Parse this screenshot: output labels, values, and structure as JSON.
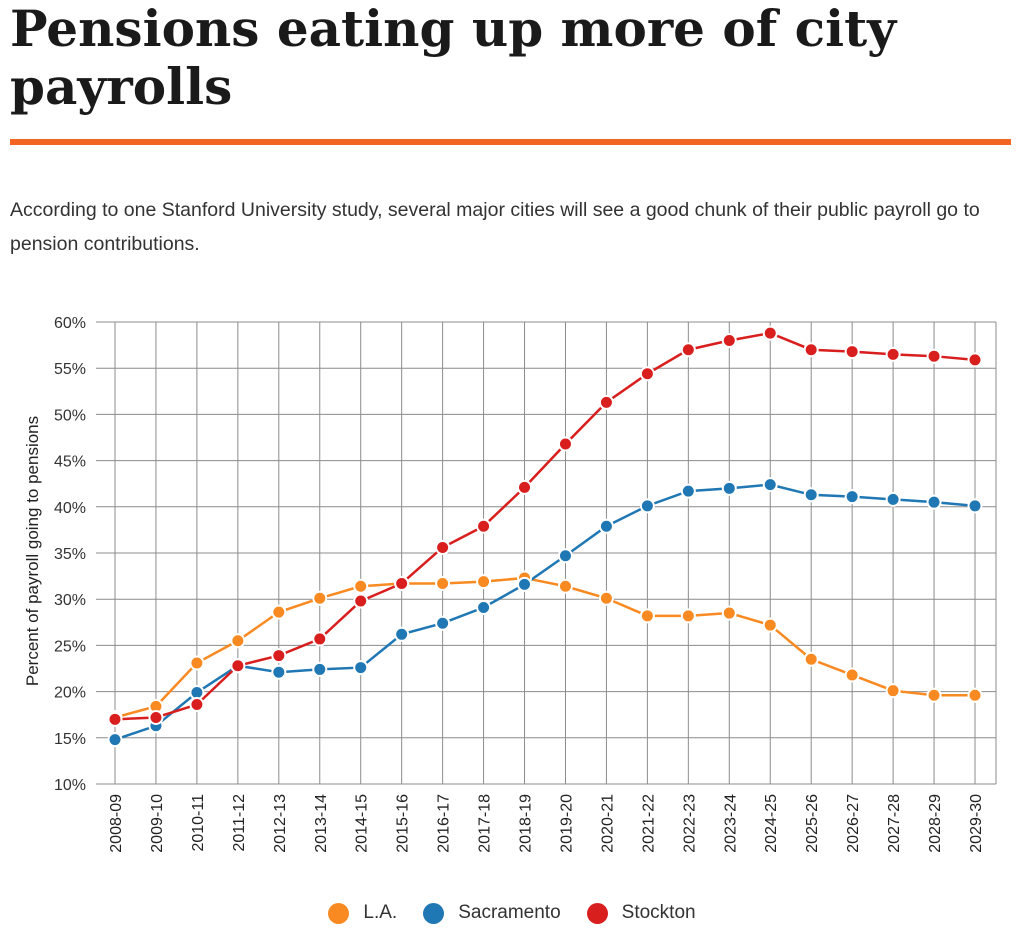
{
  "title": "Pensions eating up more of city payrolls",
  "subtitle": "According to one Stanford University study, several major cities will see a good chunk of their public payroll go to pension contributions.",
  "colors": {
    "rule": "#f26522",
    "grid": "#8c8c8c",
    "la": "#f98a21",
    "sacramento": "#1f77b4",
    "stockton": "#d91e1e"
  },
  "chart_data": {
    "type": "line",
    "title": "",
    "xlabel": "",
    "ylabel": "Percent of payroll going to pensions",
    "ylim": [
      10,
      60
    ],
    "yticks": [
      "10%",
      "15%",
      "20%",
      "25%",
      "30%",
      "35%",
      "40%",
      "45%",
      "50%",
      "55%",
      "60%"
    ],
    "grid": true,
    "legend_position": "bottom",
    "categories": [
      "2008-09",
      "2009-10",
      "2010-11",
      "2011-12",
      "2012-13",
      "2013-14",
      "2014-15",
      "2015-16",
      "2016-17",
      "2017-18",
      "2018-19",
      "2019-20",
      "2020-21",
      "2021-22",
      "2022-23",
      "2023-24",
      "2024-25",
      "2025-26",
      "2026-27",
      "2027-28",
      "2028-29",
      "2029-30"
    ],
    "series": [
      {
        "name": "L.A.",
        "color": "#f98a21",
        "values": [
          17.2,
          18.4,
          23.1,
          25.5,
          28.6,
          30.1,
          31.4,
          31.7,
          31.7,
          31.9,
          32.3,
          31.4,
          30.1,
          28.2,
          28.2,
          28.5,
          27.2,
          23.5,
          21.8,
          20.1,
          19.6,
          19.6
        ]
      },
      {
        "name": "Sacramento",
        "color": "#1f77b4",
        "values": [
          14.8,
          16.3,
          19.9,
          22.8,
          22.1,
          22.4,
          22.6,
          26.2,
          27.4,
          29.1,
          31.6,
          34.7,
          37.9,
          40.1,
          41.7,
          42.0,
          42.4,
          41.3,
          41.1,
          40.8,
          40.5,
          40.1
        ]
      },
      {
        "name": "Stockton",
        "color": "#d91e1e",
        "values": [
          17.0,
          17.2,
          18.6,
          22.8,
          23.9,
          25.7,
          29.8,
          31.7,
          35.6,
          37.9,
          42.1,
          46.8,
          51.3,
          54.4,
          57.0,
          58.0,
          58.8,
          57.0,
          56.8,
          56.5,
          56.3,
          55.9
        ]
      }
    ]
  }
}
